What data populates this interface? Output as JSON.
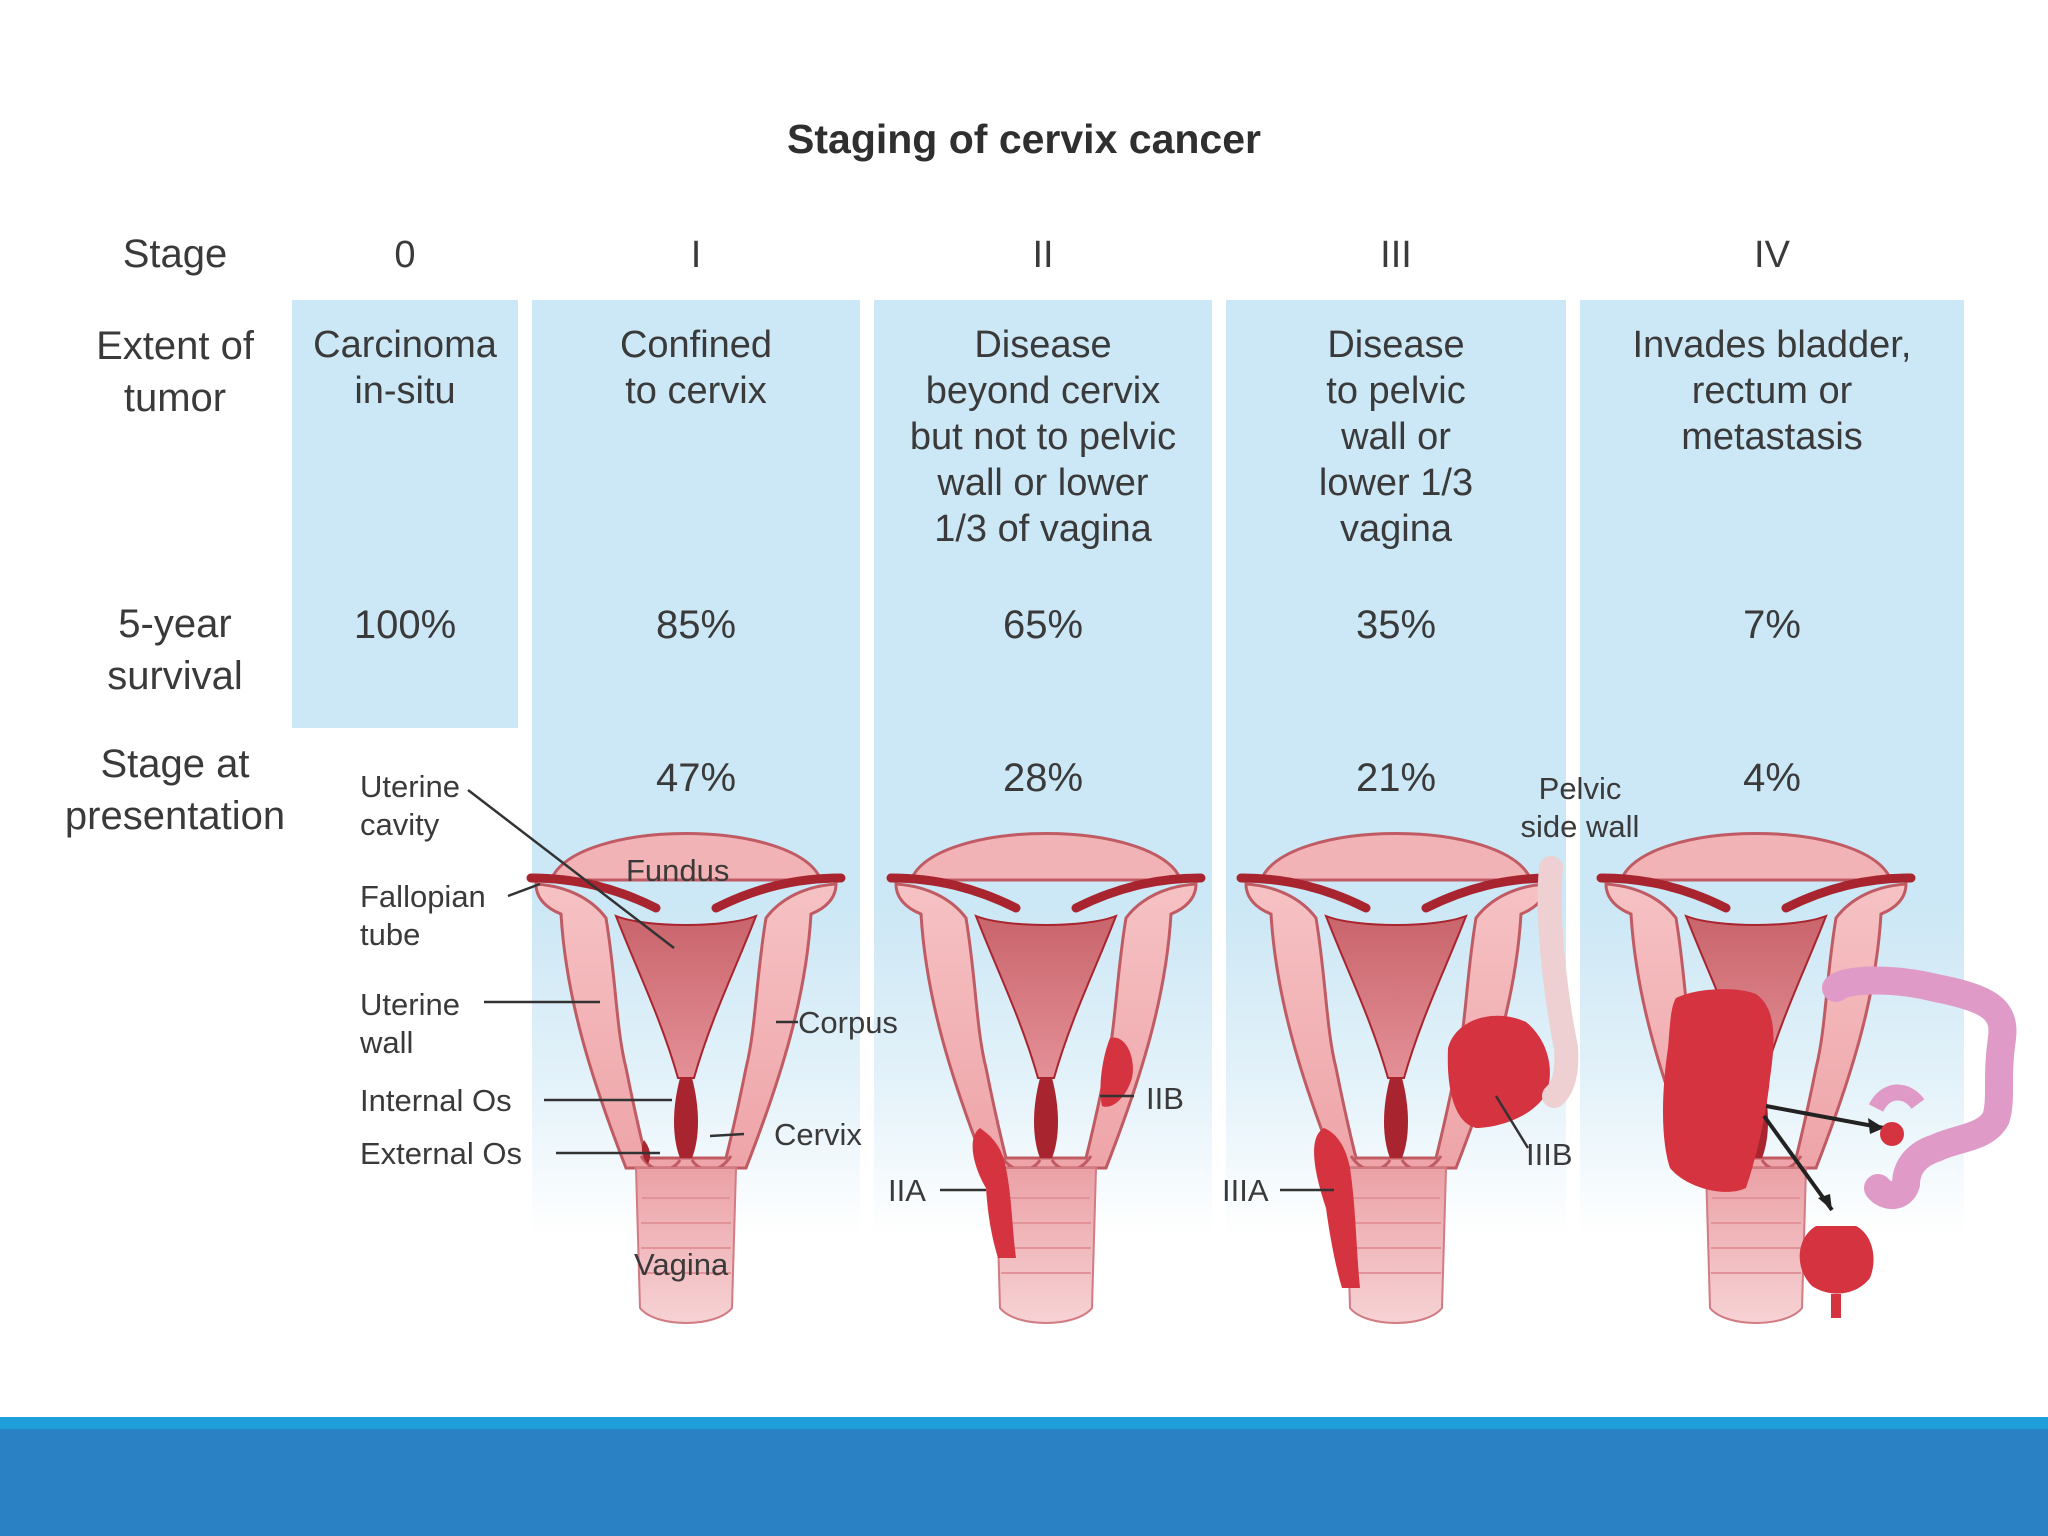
{
  "title": "Staging of cervix cancer",
  "row_labels": {
    "stage": "Stage",
    "extent": [
      "Extent of",
      "tumor"
    ],
    "survival": [
      "5-year",
      "survival"
    ],
    "presentation": [
      "Stage at",
      "presentation"
    ]
  },
  "stages": [
    {
      "stage": "0",
      "extent": [
        "Carcinoma",
        "in-situ"
      ],
      "survival": "100%",
      "presentation": ""
    },
    {
      "stage": "I",
      "extent": [
        "Confined",
        "to cervix"
      ],
      "survival": "85%",
      "presentation": "47%"
    },
    {
      "stage": "II",
      "extent": [
        "Disease",
        "beyond cervix",
        "but not to pelvic",
        "wall or lower",
        "1/3 of vagina"
      ],
      "survival": "65%",
      "presentation": "28%"
    },
    {
      "stage": "III",
      "extent": [
        "Disease",
        "to pelvic",
        "wall or",
        "lower 1/3",
        "vagina"
      ],
      "survival": "35%",
      "presentation": "21%"
    },
    {
      "stage": "IV",
      "extent": [
        "Invades bladder,",
        "rectum or",
        "metastasis"
      ],
      "survival": "7%",
      "presentation": "4%"
    }
  ],
  "anatomy_labels": {
    "uterine_cavity": [
      "Uterine",
      "cavity"
    ],
    "fundus": "Fundus",
    "fallopian_tube": [
      "Fallopian",
      "tube"
    ],
    "uterine_wall": [
      "Uterine",
      "wall"
    ],
    "corpus": "Corpus",
    "internal_os": "Internal Os",
    "external_os": "External Os",
    "cervix": "Cervix",
    "vagina": "Vagina",
    "iia": "IIA",
    "iib": "IIB",
    "iiia": "IIIA",
    "iiib": "IIIB",
    "pelvic_side_wall": [
      "Pelvic",
      "side wall"
    ]
  },
  "colors": {
    "panel": "#cce7f5",
    "uterus_light": "#f4b8bb",
    "uterus_dark": "#a8252f",
    "tumor": "#d4333f",
    "footer": "#2a82c4",
    "footer_line": "#1e9fd9"
  }
}
